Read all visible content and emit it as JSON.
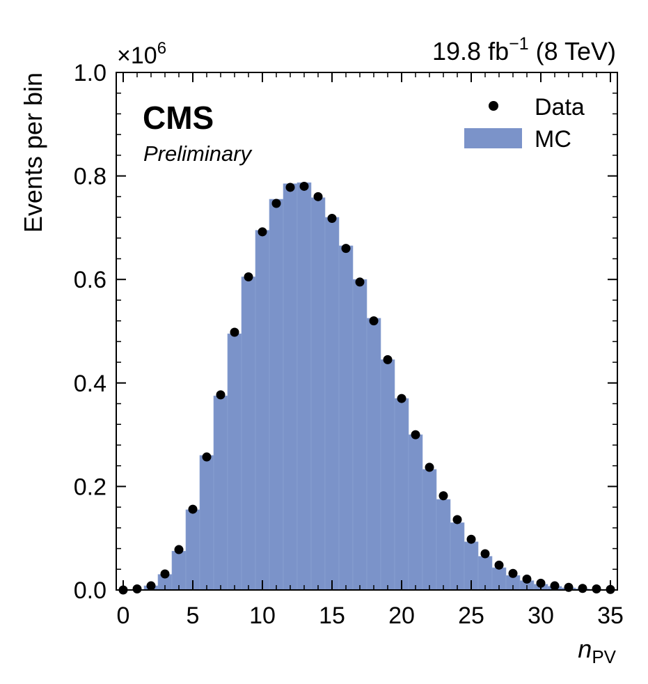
{
  "chart_data": {
    "type": "bar",
    "title": "",
    "experiment": "CMS",
    "status": "Preliminary",
    "lumi_text": "19.8 fb",
    "lumi_exponent": "−1",
    "energy_text": "(8 TeV)",
    "xlabel_main": "n",
    "xlabel_sub": "PV",
    "ylabel": "Events per bin",
    "y_multiplier": "×10",
    "y_multiplier_exp": "6",
    "xlim": [
      -0.5,
      35.5
    ],
    "ylim": [
      0.0,
      1.0
    ],
    "x_ticks": [
      0,
      5,
      10,
      15,
      20,
      25,
      30,
      35
    ],
    "y_ticks": [
      0.0,
      0.2,
      0.4,
      0.6,
      0.8,
      1.0
    ],
    "y_tick_labels": [
      "0.0",
      "0.2",
      "0.4",
      "0.6",
      "0.8",
      "1.0"
    ],
    "bin_width": 1,
    "x": [
      0,
      1,
      2,
      3,
      4,
      5,
      6,
      7,
      8,
      9,
      10,
      11,
      12,
      13,
      14,
      15,
      16,
      17,
      18,
      19,
      20,
      21,
      22,
      23,
      24,
      25,
      26,
      27,
      28,
      29,
      30,
      31,
      32,
      33,
      34,
      35
    ],
    "series": [
      {
        "name": "MC",
        "kind": "histogram",
        "color": "#7b93c9",
        "values": [
          0.0,
          0.001,
          0.008,
          0.03,
          0.075,
          0.155,
          0.26,
          0.375,
          0.495,
          0.605,
          0.695,
          0.755,
          0.785,
          0.787,
          0.758,
          0.72,
          0.665,
          0.6,
          0.525,
          0.445,
          0.37,
          0.3,
          0.233,
          0.175,
          0.13,
          0.093,
          0.065,
          0.043,
          0.028,
          0.018,
          0.011,
          0.007,
          0.004,
          0.002,
          0.001,
          0.0
        ]
      },
      {
        "name": "Data",
        "kind": "points",
        "color": "#000000",
        "values": [
          0.0,
          0.002,
          0.008,
          0.031,
          0.078,
          0.156,
          0.257,
          0.377,
          0.498,
          0.605,
          0.692,
          0.747,
          0.778,
          0.78,
          0.76,
          0.718,
          0.66,
          0.595,
          0.52,
          0.445,
          0.37,
          0.3,
          0.237,
          0.182,
          0.136,
          0.098,
          0.07,
          0.048,
          0.032,
          0.021,
          0.013,
          0.008,
          0.005,
          0.003,
          0.002,
          0.001
        ]
      }
    ],
    "legend": {
      "position": "top-right",
      "entries": [
        {
          "label": "Data",
          "marker": "point"
        },
        {
          "label": "MC",
          "marker": "box"
        }
      ]
    }
  }
}
